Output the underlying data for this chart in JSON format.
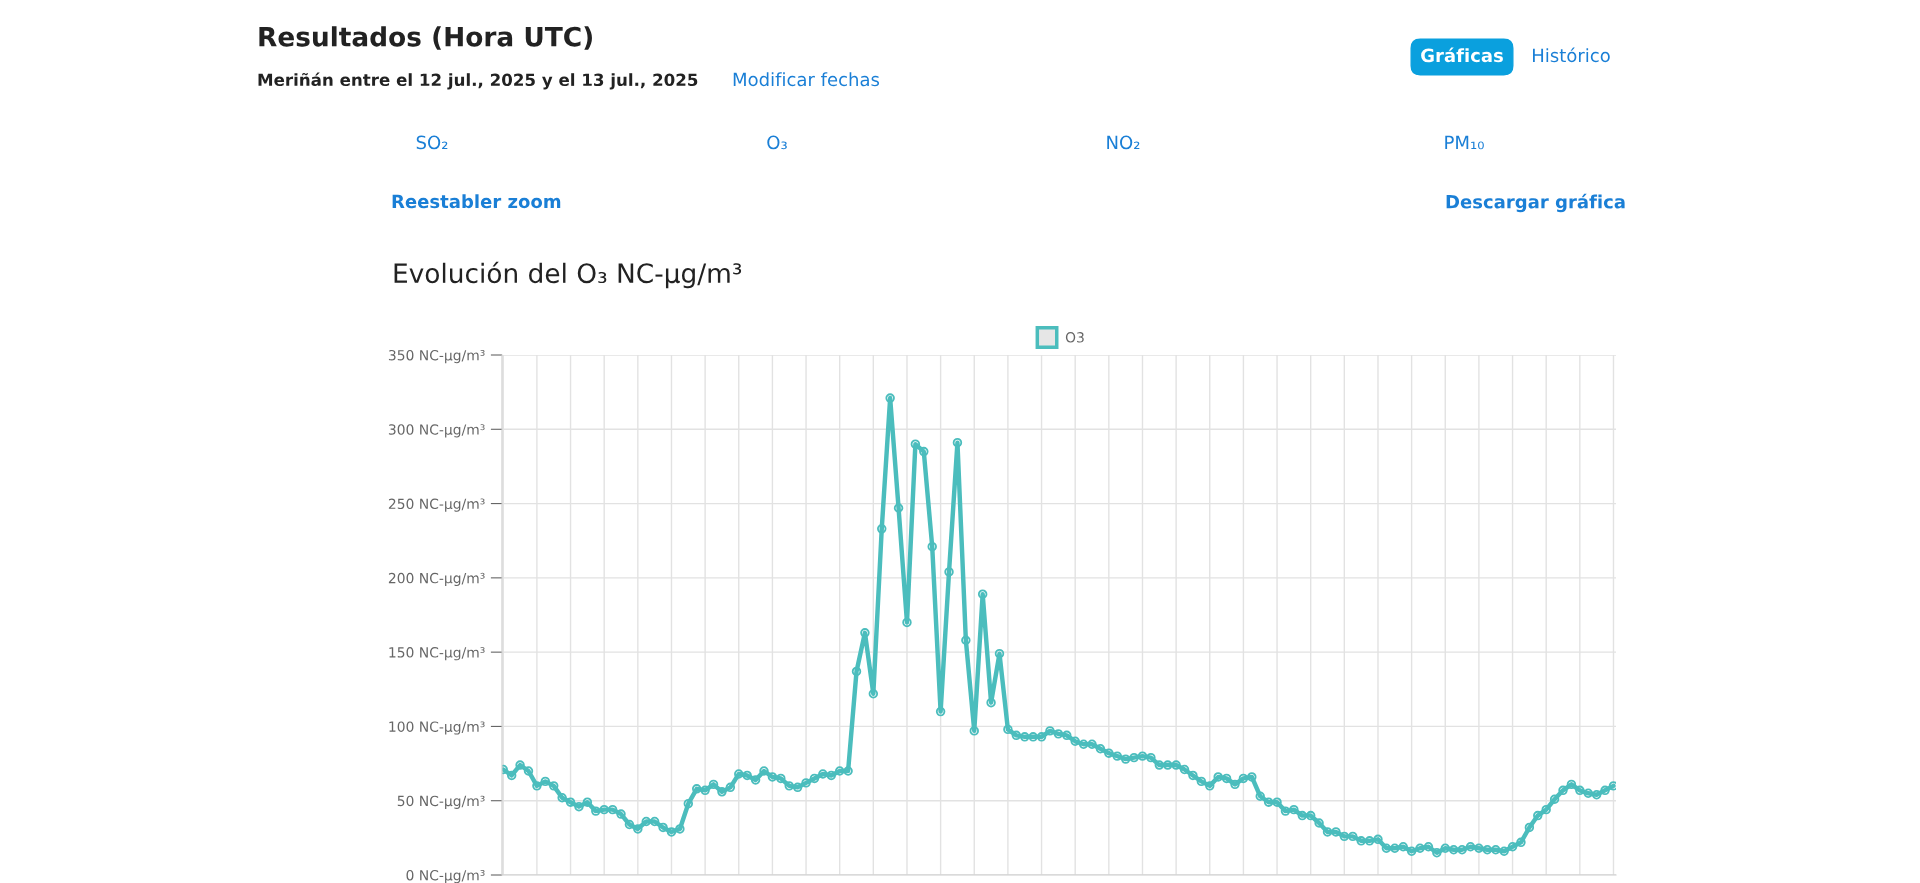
{
  "chart_data": {
    "type": "line",
    "title": "Evolución del O₃ NC-µg/m³",
    "annotations": [
      "Resultados (Hora UTC)",
      "Meriñán entre el 12 jul., 2025 y el 13 jul., 2025",
      "Modificar fechas",
      "Gráficas",
      "Histórico",
      "SO₂",
      "O₃",
      "NO₂",
      "PM₁₀",
      "Reestabler zoom",
      "Descargar gráfica"
    ],
    "categories": [
      null,
      null,
      null,
      null,
      null,
      null,
      null,
      null,
      null,
      null,
      null,
      null,
      null,
      null,
      null,
      null,
      null,
      null,
      null,
      null,
      null,
      null,
      null,
      null,
      null,
      null,
      null,
      null,
      null,
      null,
      null,
      null,
      null,
      null,
      null,
      null,
      null,
      null,
      null,
      null,
      null,
      null,
      null,
      null,
      null,
      null,
      null,
      null,
      null,
      null,
      null,
      null,
      null,
      null,
      null,
      null,
      null,
      null,
      null,
      null,
      null,
      null,
      null,
      null,
      null,
      null,
      null,
      null,
      null,
      null,
      null,
      null,
      null,
      null,
      null,
      null,
      null,
      null,
      null,
      null,
      null,
      null,
      null,
      null,
      null,
      null,
      null,
      null,
      null,
      null,
      null,
      null,
      null,
      null,
      null,
      null,
      null,
      null,
      null,
      null,
      null,
      null,
      null,
      null,
      null,
      null,
      null,
      null,
      null,
      null,
      null,
      null,
      null,
      null,
      null,
      null,
      null,
      null,
      null,
      null,
      null,
      null,
      null,
      null,
      null,
      null,
      null,
      null,
      null,
      null,
      null,
      null,
      null
    ],
    "series": [
      {
        "name": "O3",
        "color": "#4bbdbd",
        "values": [
          71,
          67,
          74,
          70,
          60,
          63,
          60,
          52,
          49,
          46,
          49,
          43,
          44,
          44,
          41,
          34,
          31,
          36,
          36,
          32,
          29,
          31,
          48,
          58,
          57,
          61,
          56,
          59,
          68,
          67,
          64,
          70,
          66,
          65,
          60,
          59,
          62,
          65,
          68,
          67,
          70,
          70,
          137,
          163,
          122,
          233,
          321,
          247,
          170,
          290,
          285,
          221,
          110,
          204,
          291,
          158,
          97,
          189,
          116,
          149,
          98,
          94,
          93,
          93,
          93,
          97,
          95,
          94,
          90,
          88,
          88,
          85,
          82,
          80,
          78,
          79,
          80,
          79,
          74,
          74,
          74,
          71,
          67,
          63,
          60,
          66,
          65,
          61,
          65,
          66,
          53,
          49,
          49,
          43,
          44,
          40,
          40,
          35,
          29,
          29,
          26,
          26,
          23,
          23,
          24,
          18,
          18,
          19,
          16,
          18,
          19,
          15,
          18,
          17,
          17,
          19,
          18,
          17,
          17,
          16,
          19,
          22,
          32,
          40,
          44,
          51,
          57,
          61,
          57,
          55,
          54,
          57,
          60
        ]
      }
    ],
    "ylim": [
      0,
      350
    ],
    "yticks": [
      {
        "value": 0,
        "label": "0 NC-µg/m³"
      },
      {
        "value": 50,
        "label": "50 NC-µg/m³"
      },
      {
        "value": 100,
        "label": "100 NC-µg/m³"
      },
      {
        "value": 150,
        "label": "150 NC-µg/m³"
      },
      {
        "value": 200,
        "label": "200 NC-µg/m³"
      },
      {
        "value": 250,
        "label": "250 NC-µg/m³"
      },
      {
        "value": 300,
        "label": "300 NC-µg/m³"
      },
      {
        "value": 350,
        "label": "350 NC-µg/m³"
      }
    ],
    "grid": true,
    "legend": "top",
    "marker": "circle",
    "line_style": "solid"
  }
}
